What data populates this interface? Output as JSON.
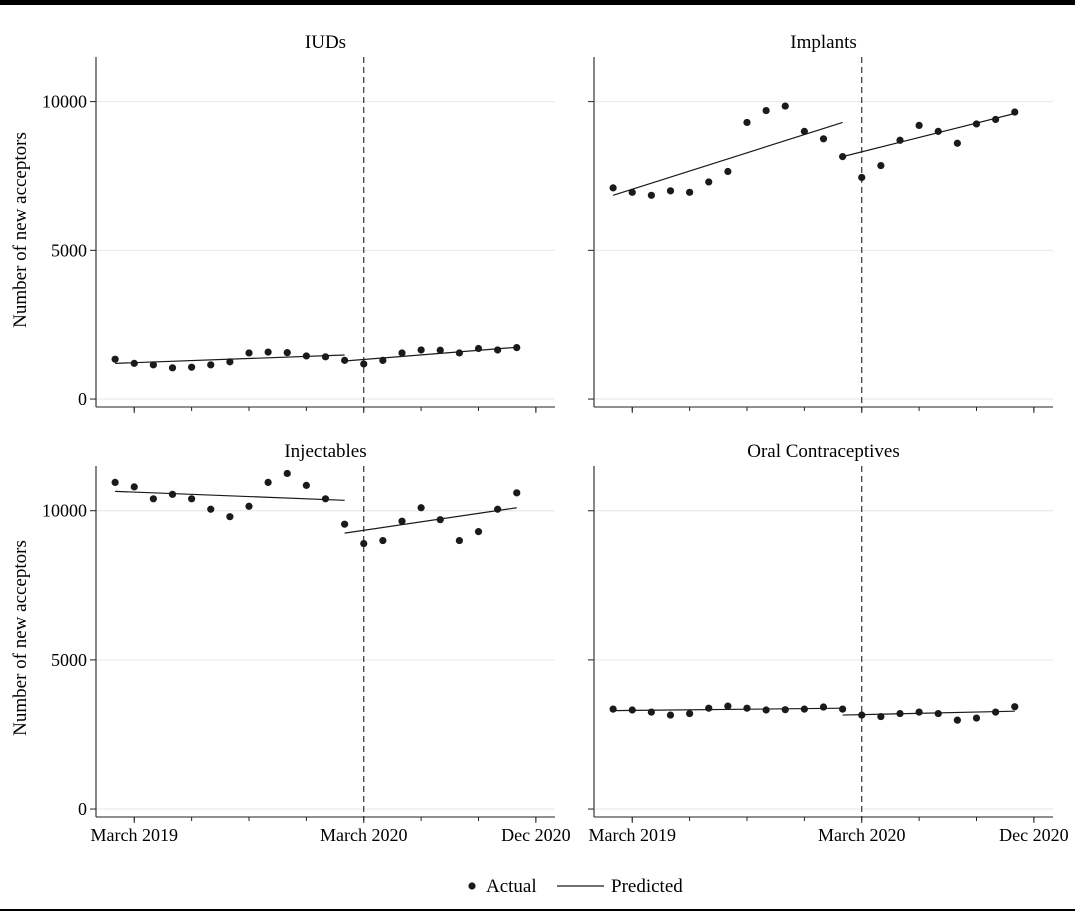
{
  "figure": {
    "ylabel": "Number of new acceptors",
    "legend": {
      "actual": "Actual",
      "predicted": "Predicted",
      "position": "bottom-center"
    },
    "x_tick_labels": [
      "March 2019",
      "March 2020",
      "Dec 2020"
    ],
    "y_tick_labels": [
      "0",
      "5000",
      "10000"
    ]
  },
  "chart_data": [
    {
      "type": "scatter",
      "title": "IUDs",
      "x_unit": "month",
      "x_range": [
        "Jan 2019",
        "Jan 2021"
      ],
      "xticks": [
        "Mar 2019",
        "Mar 2020",
        "Dec 2020"
      ],
      "ylim": [
        -200,
        11500
      ],
      "yticks": [
        0,
        5000,
        10000
      ],
      "grid": true,
      "interruption": "Mar 2020",
      "actual": [
        {
          "x": "Feb 2019",
          "y": 1340
        },
        {
          "x": "Mar 2019",
          "y": 1200
        },
        {
          "x": "Apr 2019",
          "y": 1150
        },
        {
          "x": "May 2019",
          "y": 1050
        },
        {
          "x": "Jun 2019",
          "y": 1070
        },
        {
          "x": "Jul 2019",
          "y": 1150
        },
        {
          "x": "Aug 2019",
          "y": 1250
        },
        {
          "x": "Sep 2019",
          "y": 1550
        },
        {
          "x": "Oct 2019",
          "y": 1580
        },
        {
          "x": "Nov 2019",
          "y": 1560
        },
        {
          "x": "Dec 2019",
          "y": 1450
        },
        {
          "x": "Jan 2020",
          "y": 1420
        },
        {
          "x": "Feb 2020",
          "y": 1300
        },
        {
          "x": "Mar 2020",
          "y": 1180
        },
        {
          "x": "Apr 2020",
          "y": 1300
        },
        {
          "x": "May 2020",
          "y": 1550
        },
        {
          "x": "Jun 2020",
          "y": 1650
        },
        {
          "x": "Jul 2020",
          "y": 1640
        },
        {
          "x": "Aug 2020",
          "y": 1550
        },
        {
          "x": "Sep 2020",
          "y": 1700
        },
        {
          "x": "Oct 2020",
          "y": 1650
        },
        {
          "x": "Nov 2020",
          "y": 1730
        }
      ],
      "predicted": [
        [
          {
            "x": "Feb 2019",
            "y": 1200
          },
          {
            "x": "Feb 2020",
            "y": 1480
          }
        ],
        [
          {
            "x": "Feb 2020",
            "y": 1280
          },
          {
            "x": "Nov 2020",
            "y": 1740
          }
        ]
      ]
    },
    {
      "type": "scatter",
      "title": "Implants",
      "x_unit": "month",
      "x_range": [
        "Jan 2019",
        "Jan 2021"
      ],
      "xticks": [
        "Mar 2019",
        "Mar 2020",
        "Dec 2020"
      ],
      "ylim": [
        -200,
        11500
      ],
      "yticks": [
        0,
        5000,
        10000
      ],
      "grid": true,
      "interruption": "Mar 2020",
      "actual": [
        {
          "x": "Feb 2019",
          "y": 7100
        },
        {
          "x": "Mar 2019",
          "y": 6950
        },
        {
          "x": "Apr 2019",
          "y": 6850
        },
        {
          "x": "May 2019",
          "y": 7000
        },
        {
          "x": "Jun 2019",
          "y": 6950
        },
        {
          "x": "Jul 2019",
          "y": 7300
        },
        {
          "x": "Aug 2019",
          "y": 7650
        },
        {
          "x": "Sep 2019",
          "y": 9300
        },
        {
          "x": "Oct 2019",
          "y": 9700
        },
        {
          "x": "Nov 2019",
          "y": 9850
        },
        {
          "x": "Dec 2019",
          "y": 9000
        },
        {
          "x": "Jan 2020",
          "y": 8750
        },
        {
          "x": "Feb 2020",
          "y": 8150
        },
        {
          "x": "Mar 2020",
          "y": 7450
        },
        {
          "x": "Apr 2020",
          "y": 7850
        },
        {
          "x": "May 2020",
          "y": 8700
        },
        {
          "x": "Jun 2020",
          "y": 9200
        },
        {
          "x": "Jul 2020",
          "y": 9000
        },
        {
          "x": "Aug 2020",
          "y": 8600
        },
        {
          "x": "Sep 2020",
          "y": 9250
        },
        {
          "x": "Oct 2020",
          "y": 9400
        },
        {
          "x": "Nov 2020",
          "y": 9650
        }
      ],
      "predicted": [
        [
          {
            "x": "Feb 2019",
            "y": 6850
          },
          {
            "x": "Feb 2020",
            "y": 9300
          }
        ],
        [
          {
            "x": "Feb 2020",
            "y": 8150
          },
          {
            "x": "Nov 2020",
            "y": 9600
          }
        ]
      ]
    },
    {
      "type": "scatter",
      "title": "Injectables",
      "x_unit": "month",
      "x_range": [
        "Jan 2019",
        "Jan 2021"
      ],
      "xticks": [
        "Mar 2019",
        "Mar 2020",
        "Dec 2020"
      ],
      "ylim": [
        -200,
        11500
      ],
      "yticks": [
        0,
        5000,
        10000
      ],
      "grid": true,
      "interruption": "Mar 2020",
      "actual": [
        {
          "x": "Feb 2019",
          "y": 10950
        },
        {
          "x": "Mar 2019",
          "y": 10800
        },
        {
          "x": "Apr 2019",
          "y": 10400
        },
        {
          "x": "May 2019",
          "y": 10550
        },
        {
          "x": "Jun 2019",
          "y": 10400
        },
        {
          "x": "Jul 2019",
          "y": 10050
        },
        {
          "x": "Aug 2019",
          "y": 9800
        },
        {
          "x": "Sep 2019",
          "y": 10150
        },
        {
          "x": "Oct 2019",
          "y": 10950
        },
        {
          "x": "Nov 2019",
          "y": 11250
        },
        {
          "x": "Dec 2019",
          "y": 10850
        },
        {
          "x": "Jan 2020",
          "y": 10400
        },
        {
          "x": "Feb 2020",
          "y": 9550
        },
        {
          "x": "Mar 2020",
          "y": 8900
        },
        {
          "x": "Apr 2020",
          "y": 9000
        },
        {
          "x": "May 2020",
          "y": 9650
        },
        {
          "x": "Jun 2020",
          "y": 10100
        },
        {
          "x": "Jul 2020",
          "y": 9700
        },
        {
          "x": "Aug 2020",
          "y": 9000
        },
        {
          "x": "Sep 2020",
          "y": 9300
        },
        {
          "x": "Oct 2020",
          "y": 10050
        },
        {
          "x": "Nov 2020",
          "y": 10600
        }
      ],
      "predicted": [
        [
          {
            "x": "Feb 2019",
            "y": 10650
          },
          {
            "x": "Feb 2020",
            "y": 10350
          }
        ],
        [
          {
            "x": "Feb 2020",
            "y": 9250
          },
          {
            "x": "Nov 2020",
            "y": 10100
          }
        ]
      ]
    },
    {
      "type": "scatter",
      "title": "Oral Contraceptives",
      "x_unit": "month",
      "x_range": [
        "Jan 2019",
        "Jan 2021"
      ],
      "xticks": [
        "Mar 2019",
        "Mar 2020",
        "Dec 2020"
      ],
      "ylim": [
        -200,
        11500
      ],
      "yticks": [
        0,
        5000,
        10000
      ],
      "grid": true,
      "interruption": "Mar 2020",
      "actual": [
        {
          "x": "Feb 2019",
          "y": 3350
        },
        {
          "x": "Mar 2019",
          "y": 3320
        },
        {
          "x": "Apr 2019",
          "y": 3250
        },
        {
          "x": "May 2019",
          "y": 3150
        },
        {
          "x": "Jun 2019",
          "y": 3200
        },
        {
          "x": "Jul 2019",
          "y": 3380
        },
        {
          "x": "Aug 2019",
          "y": 3450
        },
        {
          "x": "Sep 2019",
          "y": 3380
        },
        {
          "x": "Oct 2019",
          "y": 3320
        },
        {
          "x": "Nov 2019",
          "y": 3330
        },
        {
          "x": "Dec 2019",
          "y": 3350
        },
        {
          "x": "Jan 2020",
          "y": 3420
        },
        {
          "x": "Feb 2020",
          "y": 3350
        },
        {
          "x": "Mar 2020",
          "y": 3150
        },
        {
          "x": "Apr 2020",
          "y": 3100
        },
        {
          "x": "May 2020",
          "y": 3200
        },
        {
          "x": "Jun 2020",
          "y": 3250
        },
        {
          "x": "Jul 2020",
          "y": 3200
        },
        {
          "x": "Aug 2020",
          "y": 2980
        },
        {
          "x": "Sep 2020",
          "y": 3050
        },
        {
          "x": "Oct 2020",
          "y": 3250
        },
        {
          "x": "Nov 2020",
          "y": 3430
        }
      ],
      "predicted": [
        [
          {
            "x": "Feb 2019",
            "y": 3300
          },
          {
            "x": "Feb 2020",
            "y": 3380
          }
        ],
        [
          {
            "x": "Feb 2020",
            "y": 3150
          },
          {
            "x": "Nov 2020",
            "y": 3280
          }
        ]
      ]
    }
  ]
}
